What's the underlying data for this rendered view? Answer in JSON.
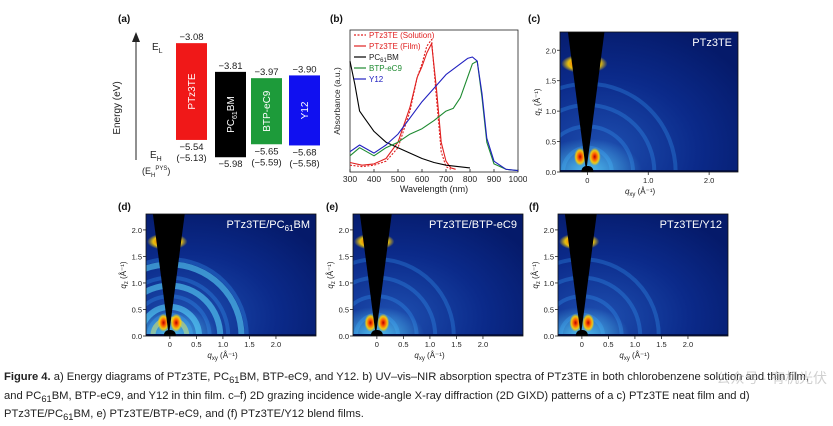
{
  "panel_labels": {
    "a": "(a)",
    "b": "(b)",
    "c": "(c)",
    "d": "(d)",
    "e": "(e)",
    "f": "(f)"
  },
  "energy": {
    "y_label": "Energy (eV)",
    "el_label": "E",
    "el_sub": "L",
    "eh_label": "E",
    "eh_sub": "H",
    "eh_pys": "(E",
    "eh_pys_sub": "H",
    "eh_pys_sup": "PYS",
    "eh_pys_close": ")",
    "materials": [
      {
        "name": "PTz3TE",
        "lumo": "−3.08",
        "homo": "−5.54",
        "homo_pys": "(−5.13)",
        "color": "#f01818",
        "text_color": "#ffffff"
      },
      {
        "name": "PC61BM",
        "lumo": "−3.81",
        "homo": "−5.98",
        "homo_pys": "",
        "color": "#000000",
        "text_color": "#ffffff"
      },
      {
        "name": "BTP-eC9",
        "lumo": "−3.97",
        "homo": "−5.65",
        "homo_pys": "(−5.59)",
        "color": "#1d9b3a",
        "text_color": "#ffffff"
      },
      {
        "name": "Y12",
        "lumo": "−3.90",
        "homo": "−5.68",
        "homo_pys": "(−5.58)",
        "color": "#1010f0",
        "text_color": "#ffffff"
      }
    ]
  },
  "chart_data": {
    "type": "line",
    "xlabel": "Wavelength (nm)",
    "ylabel": "Absorbance (a.u.)",
    "xlim": [
      300,
      1000
    ],
    "ylim": [
      0,
      1.05
    ],
    "xticks": [
      300,
      400,
      500,
      600,
      700,
      800,
      900,
      1000
    ],
    "series": [
      {
        "name": "PTz3TE (Solution)",
        "color": "#e02020",
        "dashed": true,
        "x": [
          300,
          350,
          400,
          450,
          500,
          550,
          580,
          600,
          620,
          640,
          660,
          680,
          700,
          720
        ],
        "y": [
          0.05,
          0.04,
          0.05,
          0.08,
          0.18,
          0.45,
          0.7,
          0.8,
          0.93,
          0.98,
          0.55,
          0.15,
          0.04,
          0.02
        ]
      },
      {
        "name": "PTz3TE (Film)",
        "color": "#e02020",
        "dashed": false,
        "x": [
          300,
          350,
          400,
          450,
          500,
          550,
          580,
          600,
          620,
          640,
          660,
          680,
          700,
          720,
          740
        ],
        "y": [
          0.07,
          0.05,
          0.06,
          0.1,
          0.22,
          0.48,
          0.7,
          0.78,
          0.88,
          0.95,
          0.62,
          0.22,
          0.08,
          0.03,
          0.02
        ]
      },
      {
        "name": "PC61BM",
        "color": "#000000",
        "dashed": false,
        "x": [
          300,
          320,
          340,
          360,
          400,
          450,
          500,
          550,
          600,
          650,
          700,
          750,
          800
        ],
        "y": [
          0.82,
          0.65,
          0.45,
          0.4,
          0.3,
          0.22,
          0.18,
          0.14,
          0.1,
          0.07,
          0.05,
          0.04,
          0.03
        ]
      },
      {
        "name": "BTP-eC9",
        "color": "#1d8a30",
        "dashed": false,
        "x": [
          300,
          340,
          400,
          450,
          500,
          550,
          600,
          650,
          700,
          730,
          760,
          790,
          810,
          830,
          850,
          870,
          900,
          950,
          1000
        ],
        "y": [
          0.12,
          0.18,
          0.12,
          0.18,
          0.22,
          0.28,
          0.32,
          0.38,
          0.45,
          0.47,
          0.55,
          0.7,
          0.8,
          0.82,
          0.55,
          0.22,
          0.06,
          0.02,
          0.01
        ]
      },
      {
        "name": "Y12",
        "color": "#2020c0",
        "dashed": false,
        "x": [
          300,
          340,
          400,
          450,
          500,
          550,
          600,
          650,
          700,
          730,
          760,
          790,
          810,
          830,
          850,
          870,
          900,
          950,
          1000
        ],
        "y": [
          0.15,
          0.2,
          0.14,
          0.2,
          0.28,
          0.4,
          0.52,
          0.62,
          0.72,
          0.76,
          0.8,
          0.84,
          0.85,
          0.82,
          0.58,
          0.25,
          0.08,
          0.02,
          0.01
        ]
      }
    ]
  },
  "giwaxs": {
    "qz_label": "q",
    "qz_sub": "z",
    "unit": " (Å⁻¹)",
    "qxy_label": "q",
    "qxy_sub": "xy",
    "panels": [
      {
        "id": "c",
        "title": "PTz3TE",
        "title_sub": ""
      },
      {
        "id": "d",
        "title": "PTz3TE/PC",
        "title_sub": "61",
        "title_after": "BM"
      },
      {
        "id": "e",
        "title": "PTz3TE/BTP-eC9",
        "title_sub": ""
      },
      {
        "id": "f",
        "title": "PTz3TE/Y12",
        "title_sub": ""
      }
    ],
    "qz_ticks": [
      "0.0",
      "0.5",
      "1.0",
      "1.5",
      "2.0"
    ],
    "qxy_ticks": [
      "0",
      "0.5",
      "1.0",
      "1.5",
      "2.0"
    ],
    "qxy_ticks_c": [
      "0",
      "1.0",
      "2.0"
    ]
  },
  "caption": {
    "label": "Figure 4.",
    "t1": " a) Energy diagrams of PTz3TE, PC",
    "s1": "61",
    "t2": "BM, BTP-eC9, and Y12. b) UV–vis–NIR absorption spectra of PTz3TE in both chlorobenzene solution and thin film, and PC",
    "s2": "61",
    "t3": "BM, BTP-eC9, and Y12 in thin film. c–f) 2D grazing incidence wide-angle X-ray diffraction (2D GIXD) patterns of a c) PTz3TE neat film and d) PTz3TE/PC",
    "s3": "61",
    "t4": "BM, e) PTz3TE/BTP-eC9, and (f) PTz3TE/Y12 blend films."
  },
  "watermark": "公众号 · 有机光伏"
}
